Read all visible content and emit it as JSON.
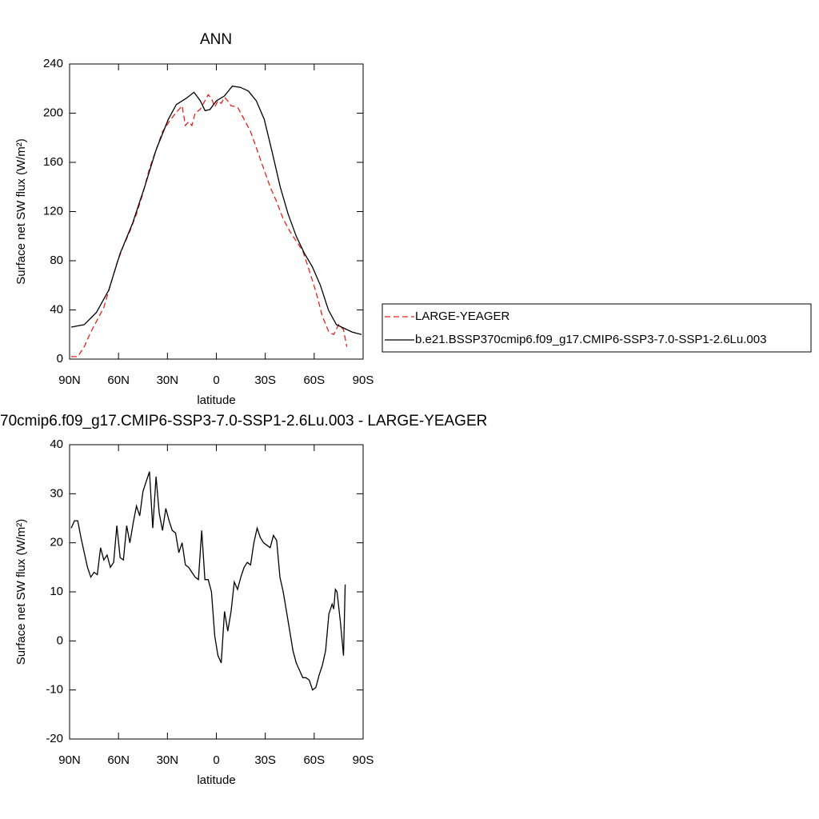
{
  "chart_data": [
    {
      "type": "line",
      "title": "ANN",
      "x_label": "latitude",
      "y_label": "Surface net SW flux (W/m²)",
      "xlim": [
        90,
        -90
      ],
      "ylim": [
        0,
        240
      ],
      "xticks": [
        {
          "value": 90,
          "label": "90N"
        },
        {
          "value": 60,
          "label": "60N"
        },
        {
          "value": 30,
          "label": "30N"
        },
        0,
        {
          "value": -30,
          "label": "30S"
        },
        {
          "value": -60,
          "label": "60S"
        },
        {
          "value": -90,
          "label": "90S"
        }
      ],
      "yticks": [
        0,
        40,
        80,
        120,
        160,
        200,
        240
      ],
      "series": [
        {
          "name": "LARGE-YEAGER",
          "color": "#e8201c",
          "line_style": "dashed",
          "x": [
            89,
            85,
            81,
            77,
            73,
            69,
            65,
            61,
            57,
            53,
            49,
            45,
            41,
            37,
            33,
            29,
            25,
            21,
            19,
            17,
            15,
            13,
            10,
            7,
            5,
            3,
            1,
            -1,
            -3,
            -5,
            -7,
            -9,
            -13,
            -17,
            -21,
            -25,
            -29,
            -33,
            -37,
            -41,
            -45,
            -49,
            -53,
            -57,
            -61,
            -65,
            -69,
            -72,
            -75,
            -78,
            -80
          ],
          "values": [
            2,
            2,
            10,
            22,
            32,
            42,
            60,
            78,
            92,
            104,
            118,
            135,
            155,
            170,
            185,
            193,
            200,
            206,
            190,
            193,
            190,
            200,
            203,
            210,
            215,
            212,
            205,
            210,
            208,
            213,
            210,
            206,
            205,
            195,
            185,
            170,
            155,
            140,
            128,
            114,
            104,
            96,
            88,
            72,
            55,
            35,
            22,
            20,
            28,
            24,
            10
          ]
        },
        {
          "name": "b.e21.BSSP370cmip6.f09_g17.CMIP6-SSP3-7.0-SSP1-2.6Lu.003",
          "color": "#000000",
          "line_style": "solid",
          "x": [
            89,
            81,
            73.5,
            66,
            59,
            51.5,
            44,
            37,
            29.5,
            24.5,
            18.6,
            13.7,
            9.8,
            6.9,
            3.9,
            0,
            -4.9,
            -9.8,
            -14.7,
            -19.6,
            -24.5,
            -29.4,
            -34.3,
            -39.2,
            -44,
            -49,
            -54,
            -58.9,
            -63.8,
            -68.7,
            -73.6,
            -78.5,
            -83.4,
            -89
          ],
          "values": [
            26,
            28,
            38,
            56,
            86,
            110,
            140,
            170,
            195,
            207,
            212,
            217,
            210,
            202,
            203,
            210,
            214,
            222,
            221,
            218,
            210,
            195,
            168,
            140,
            118,
            100,
            86,
            75,
            60,
            40,
            28,
            25,
            22,
            20
          ]
        }
      ]
    },
    {
      "type": "line",
      "title": "70cmip6.f09_g17.CMIP6-SSP3-7.0-SSP1-2.6Lu.003 - LARGE-YEAGER",
      "x_label": "latitude",
      "y_label": "Surface net SW flux (W/m²)",
      "xlim": [
        90,
        -90
      ],
      "ylim": [
        -20,
        40
      ],
      "xticks": [
        {
          "value": 90,
          "label": "90N"
        },
        {
          "value": 60,
          "label": "60N"
        },
        {
          "value": 30,
          "label": "30N"
        },
        0,
        {
          "value": -30,
          "label": "30S"
        },
        {
          "value": -60,
          "label": "60S"
        },
        {
          "value": -90,
          "label": "90S"
        }
      ],
      "yticks": [
        -20,
        -10,
        0,
        10,
        20,
        30,
        40
      ],
      "series": [
        {
          "color": "#000000",
          "line_style": "solid",
          "x": [
            89,
            87,
            85,
            83,
            81,
            79,
            77,
            75,
            73,
            71,
            69,
            67,
            65,
            63,
            61,
            59,
            57,
            55,
            53,
            51,
            49,
            47,
            45,
            43,
            41,
            39,
            37,
            35,
            33,
            31,
            29,
            27,
            25,
            23,
            21,
            19,
            17,
            15,
            13,
            11,
            9,
            7,
            5,
            3,
            1,
            -1,
            -3,
            -5,
            -7,
            -9,
            -11,
            -13,
            -15,
            -17,
            -19,
            -21,
            -23,
            -25,
            -27,
            -29,
            -31,
            -33,
            -35,
            -37,
            -39,
            -41,
            -43,
            -45,
            -47,
            -49,
            -51,
            -53,
            -55,
            -57,
            -59,
            -61,
            -63,
            -65,
            -67,
            -69,
            -71,
            -72,
            -73,
            -74,
            -76,
            -78,
            -79
          ],
          "values": [
            23,
            24.5,
            24.5,
            21,
            18,
            15,
            13,
            14,
            13.5,
            19,
            16.5,
            17.5,
            15,
            16,
            23.5,
            17,
            16.5,
            23.5,
            20,
            24,
            27.5,
            25.5,
            30.5,
            32.5,
            34.5,
            23,
            33.5,
            26,
            22.5,
            27,
            24.5,
            22.5,
            22,
            18,
            20,
            15.5,
            15,
            14,
            13,
            12.5,
            22.5,
            12.5,
            12.5,
            10,
            1,
            -3,
            -4.5,
            6,
            2,
            6,
            12,
            10.5,
            13,
            15,
            16,
            15.5,
            20,
            23,
            21,
            20,
            19.5,
            19,
            21.5,
            20.5,
            13,
            10,
            6,
            2,
            -2,
            -4.5,
            -6,
            -7.5,
            -7.5,
            -8,
            -10,
            -9.5,
            -7,
            -5,
            -2,
            5.5,
            7.5,
            6.5,
            10.5,
            10,
            4,
            -3,
            11.5
          ]
        }
      ]
    }
  ]
}
